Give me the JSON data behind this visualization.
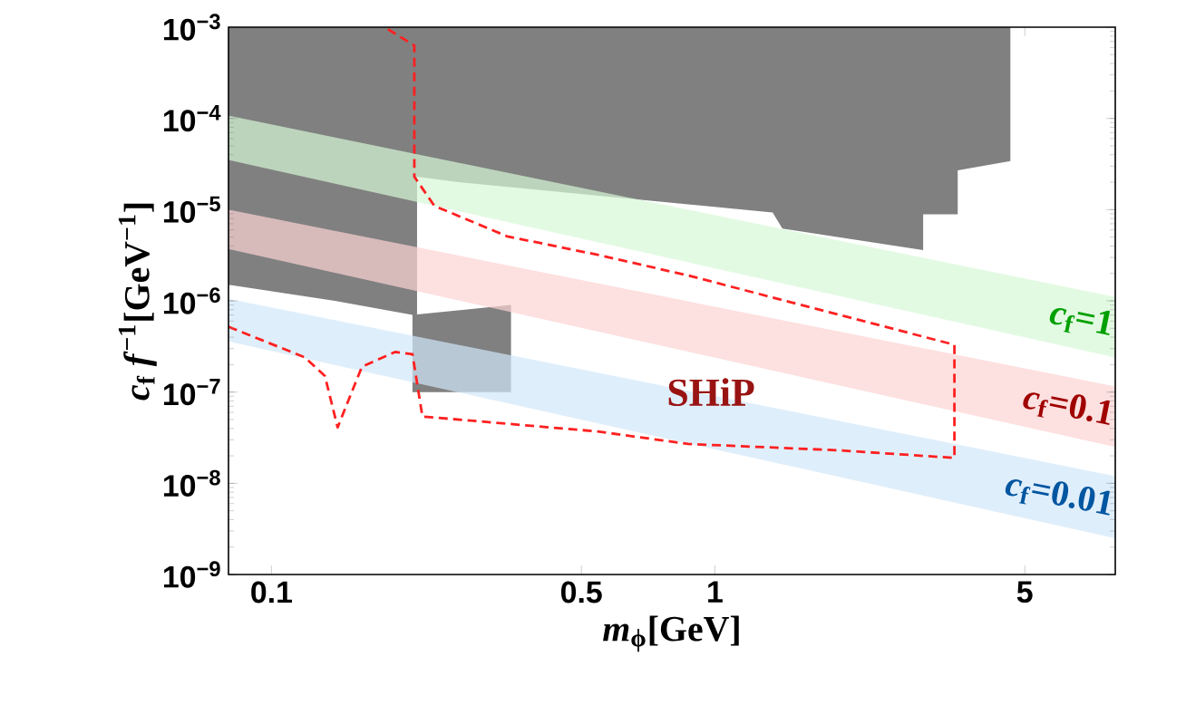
{
  "chart_data": {
    "type": "area",
    "xlabel": "*m*$_{ϕ}$[GeV]",
    "ylabel": "*c*$_{f}$ *f*$^{−1}$[GeV$^{−1}$]",
    "log": "xy",
    "xlim": [
      0.08,
      8
    ],
    "ylim": [
      1e-09,
      0.001
    ],
    "xticks": [
      0.1,
      0.5,
      1,
      5
    ],
    "yticks": [
      {
        "value": 1e-09,
        "label": "10$^{−9}$"
      },
      {
        "value": 1e-08,
        "label": "10$^{−8}$"
      },
      {
        "value": 1e-07,
        "label": "10$^{−7}$"
      },
      {
        "value": 1e-06,
        "label": "10$^{−6}$"
      },
      {
        "value": 1e-05,
        "label": "10$^{−5}$"
      },
      {
        "value": 0.0001,
        "label": "10$^{−4}$"
      },
      {
        "value": 0.001,
        "label": "10$^{−3}$"
      }
    ],
    "series": [
      {
        "color": "#808080",
        "x": [
          0.08,
          4.64,
          4.64,
          3.53,
          3.53,
          2.95,
          2.95,
          1.42,
          1.35,
          0.264,
          0.213,
          0.213,
          0.347,
          0.347,
          0.208,
          0.208,
          0.139,
          0.08
        ],
        "values": [
          0.001,
          0.001,
          3.4e-05,
          2.7e-05,
          8.9e-06,
          8.9e-06,
          3.6e-06,
          6.2e-06,
          9.3e-06,
          2e-05,
          2.3e-05,
          7.1e-07,
          9e-07,
          1e-07,
          1e-07,
          7e-07,
          1e-06,
          1.5e-06
        ]
      },
      {
        "name": "*c*$_{f}$=1",
        "color": "#e2fae2",
        "x": [
          0.08,
          8,
          8,
          0.08
        ],
        "values": [
          0.000107,
          1.1e-06,
          2.4e-07,
          3.5e-05
        ]
      },
      {
        "name": "*c*$_{f}$=0.1",
        "color": "#fde0e0",
        "x": [
          0.08,
          8,
          8,
          0.08
        ],
        "values": [
          1e-05,
          1.15e-07,
          2.5e-08,
          3.7e-06
        ]
      },
      {
        "name": "*c*$_{f}$=0.01",
        "color": "#dfeefb",
        "x": [
          0.08,
          8,
          8,
          0.08
        ],
        "values": [
          1.05e-06,
          1.2e-08,
          2.5e-09,
          3.6e-07
        ]
      },
      {
        "type": "line",
        "line_style": "dashed",
        "color": "#ff2020",
        "x": [
          0.08,
          0.119,
          0.132,
          0.141,
          0.16,
          0.19,
          0.208,
          0.219,
          0.544,
          0.87,
          1.9,
          3.47,
          3.47,
          0.87,
          0.544,
          0.34,
          0.233,
          0.21,
          0.21,
          0.18
        ],
        "values": [
          5.2e-07,
          2.4e-07,
          1.5e-07,
          4.1e-08,
          1.9e-07,
          2.75e-07,
          2.6e-07,
          5.4e-08,
          3.7e-08,
          2.7e-08,
          2.3e-08,
          1.9e-08,
          3.3e-07,
          1.9e-06,
          3.2e-06,
          5.1e-06,
          1.1e-05,
          2.3e-05,
          0.00063,
          0.001
        ]
      }
    ],
    "annotations": [
      {
        "text": "SHiP",
        "x": 0.98,
        "y": 1e-07
      }
    ]
  }
}
